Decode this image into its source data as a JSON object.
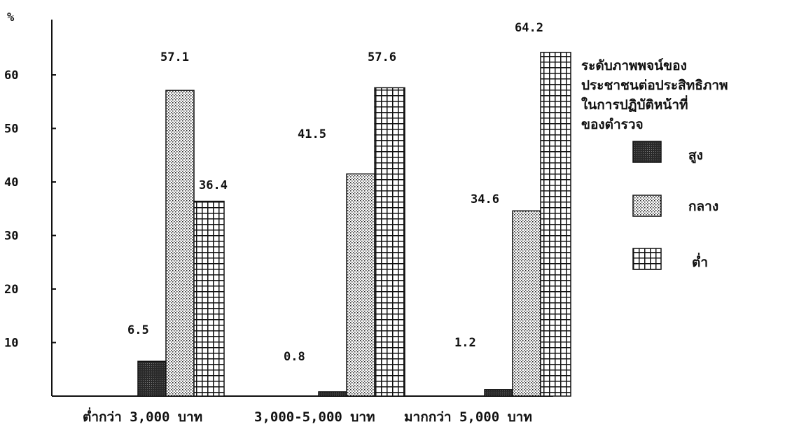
{
  "chart_data": {
    "type": "bar",
    "ylabel": "%",
    "ylim": [
      0,
      70
    ],
    "yticks": [
      "10",
      "20",
      "30",
      "40",
      "50",
      "60"
    ],
    "categories": [
      "ต่ำกว่า 3,000 บาท",
      "3,000-5,000 บาท",
      "มากกว่า 5,000 บาท"
    ],
    "series": [
      {
        "name": "สูง",
        "pattern": "dark",
        "values": [
          6.5,
          0.8,
          1.2
        ],
        "labels": [
          "6.5",
          "0.8",
          "1.2"
        ]
      },
      {
        "name": "กลาง",
        "pattern": "dotted",
        "values": [
          57.1,
          41.5,
          34.6
        ],
        "labels": [
          "57.1",
          "41.5",
          "34.6"
        ]
      },
      {
        "name": "ต่ำ",
        "pattern": "grid",
        "values": [
          36.4,
          57.6,
          64.2
        ],
        "labels": [
          "36.4",
          "57.6",
          "64.2"
        ]
      }
    ],
    "legend": {
      "title_lines": [
        "ระดับภาพพจน์ของ",
        "ประชาชนต่อประสิทธิภาพ",
        "ในการปฏิบัติหน้าที่",
        "ของตำรวจ"
      ],
      "placement": "right"
    },
    "grid": false,
    "colors": {
      "ink": "#111111",
      "dark_fill": "#2a2a2a",
      "background": "#ffffff"
    }
  }
}
